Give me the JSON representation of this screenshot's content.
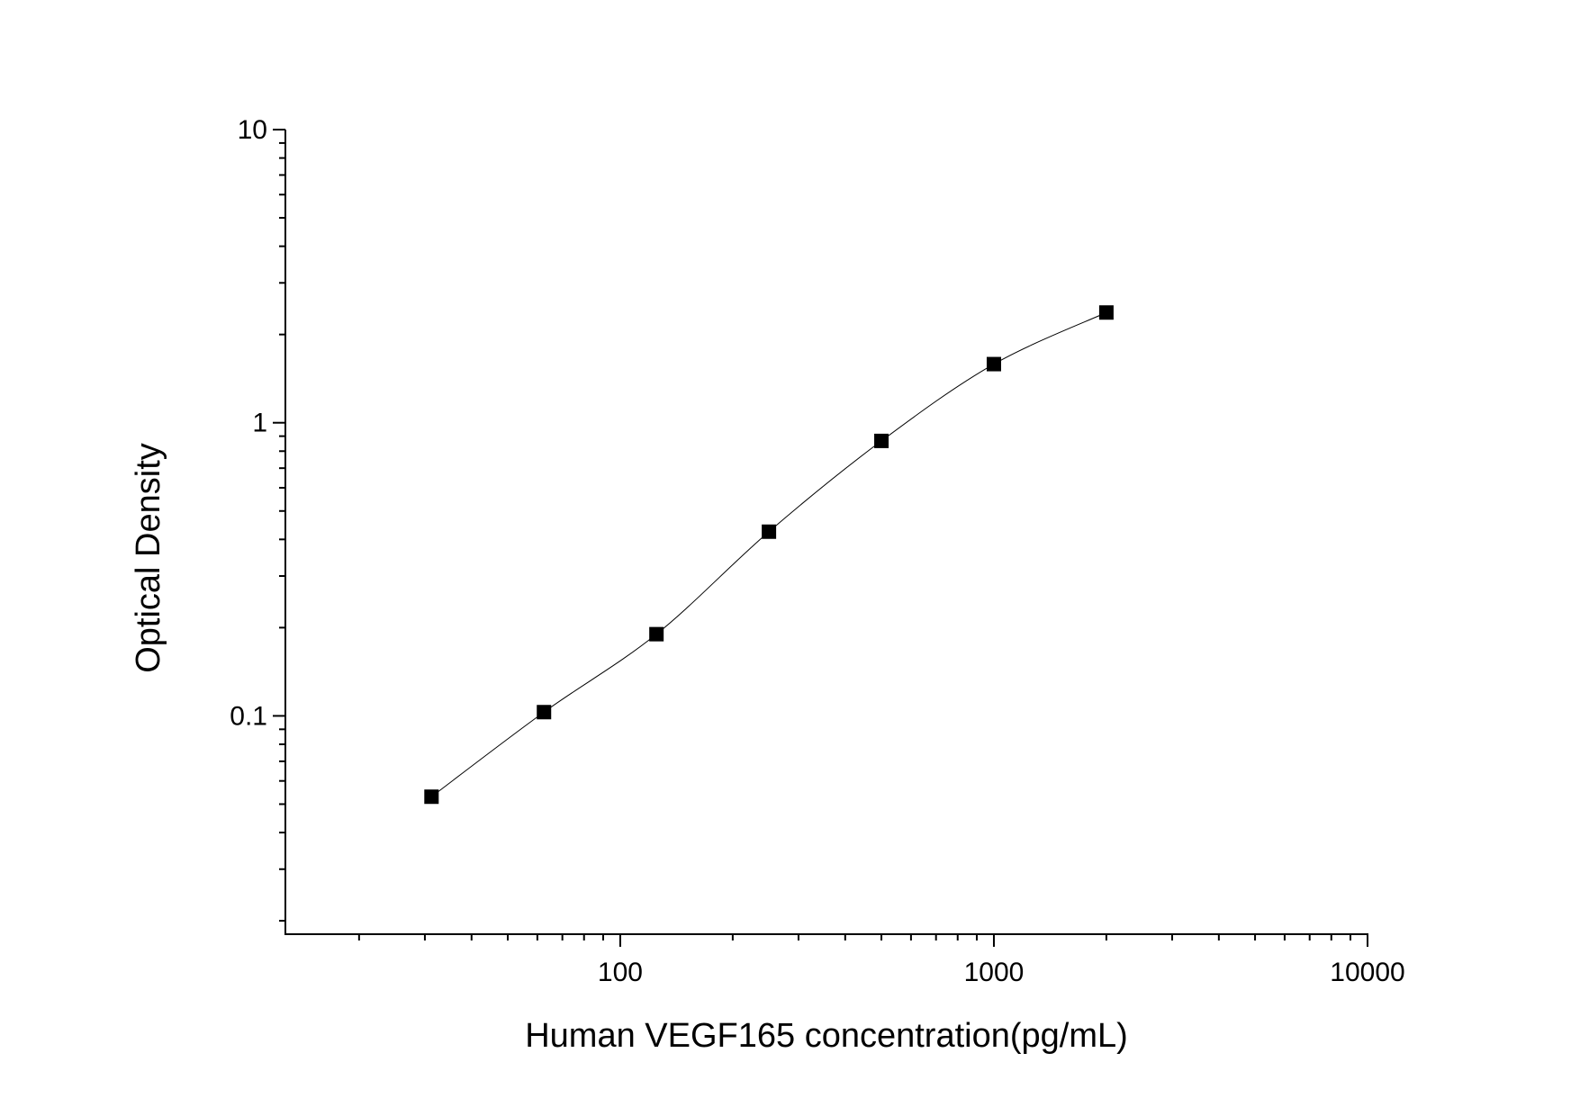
{
  "chart_data": {
    "type": "scatter",
    "title": "",
    "xlabel": "Human VEGF165 concentration(pg/mL)",
    "ylabel": "Optical Density",
    "xscale": "log",
    "yscale": "log",
    "xlim": [
      12.7,
      10000
    ],
    "ylim": [
      0.018,
      10
    ],
    "x_ticks": [
      {
        "value": 100,
        "label": "100"
      },
      {
        "value": 1000,
        "label": "1000"
      },
      {
        "value": 10000,
        "label": "10000"
      }
    ],
    "y_ticks": [
      {
        "value": 0.1,
        "label": "0.1"
      },
      {
        "value": 1,
        "label": "1"
      },
      {
        "value": 10,
        "label": "10"
      }
    ],
    "grid": false,
    "marker": "square",
    "fit_curve": "smooth line through points",
    "colors": {
      "marker": "#000000",
      "line": "#000000"
    },
    "series": [
      {
        "x": [
          31.25,
          62.5,
          125,
          250,
          500,
          1000,
          2000
        ],
        "y": [
          0.053,
          0.103,
          0.19,
          0.425,
          0.867,
          1.585,
          2.377
        ]
      }
    ]
  }
}
